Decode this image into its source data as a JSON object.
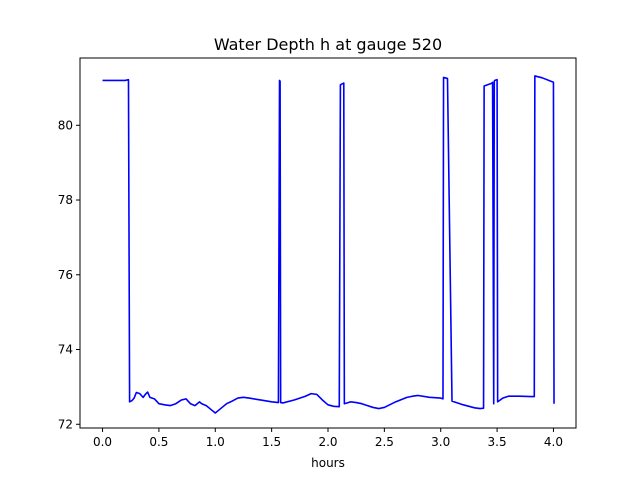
{
  "chart_data": {
    "type": "line",
    "title": "Water Depth h at gauge 520",
    "xlabel": "hours",
    "ylabel": "",
    "xlim": [
      -0.2,
      4.2
    ],
    "ylim": [
      71.9,
      81.8
    ],
    "xticks": [
      0.0,
      0.5,
      1.0,
      1.5,
      2.0,
      2.5,
      3.0,
      3.5,
      4.0
    ],
    "xtick_labels": [
      "0.0",
      "0.5",
      "1.0",
      "1.5",
      "2.0",
      "2.5",
      "3.0",
      "3.5",
      "4.0"
    ],
    "yticks": [
      72,
      74,
      76,
      78,
      80
    ],
    "ytick_labels": [
      "72",
      "74",
      "76",
      "78",
      "80"
    ],
    "grid": false,
    "colors": {
      "line": "#0000ff"
    },
    "series": [
      {
        "x": [
          0.0,
          0.1,
          0.2,
          0.23,
          0.24,
          0.26,
          0.28,
          0.3,
          0.33,
          0.36,
          0.38,
          0.4,
          0.42,
          0.44,
          0.46,
          0.5,
          0.55,
          0.6,
          0.65,
          0.7,
          0.74,
          0.78,
          0.82,
          0.86,
          0.88,
          0.92,
          0.96,
          1.0,
          1.02,
          1.06,
          1.1,
          1.15,
          1.2,
          1.25,
          1.3,
          1.4,
          1.5,
          1.56,
          1.57,
          1.575,
          1.58,
          1.6,
          1.7,
          1.8,
          1.85,
          1.9,
          1.95,
          2.0,
          2.05,
          2.1,
          2.11,
          2.12,
          2.14,
          2.145,
          2.2,
          2.25,
          2.3,
          2.35,
          2.4,
          2.45,
          2.5,
          2.6,
          2.7,
          2.75,
          2.8,
          2.9,
          3.0,
          3.02,
          3.025,
          3.05,
          3.06,
          3.1,
          3.2,
          3.3,
          3.35,
          3.38,
          3.385,
          3.45,
          3.46,
          3.47,
          3.475,
          3.48,
          3.5,
          3.505,
          3.55,
          3.6,
          3.7,
          3.8,
          3.83,
          3.835,
          3.9,
          4.0,
          4.005
        ],
        "y": [
          81.2,
          81.2,
          81.2,
          81.22,
          72.6,
          72.63,
          72.7,
          72.85,
          72.82,
          72.72,
          72.8,
          72.86,
          72.72,
          72.7,
          72.68,
          72.55,
          72.52,
          72.5,
          72.55,
          72.65,
          72.68,
          72.55,
          72.5,
          72.6,
          72.55,
          72.5,
          72.4,
          72.3,
          72.35,
          72.45,
          72.55,
          72.62,
          72.7,
          72.72,
          72.7,
          72.65,
          72.6,
          72.58,
          81.2,
          81.18,
          72.58,
          72.57,
          72.65,
          72.75,
          72.82,
          72.8,
          72.65,
          72.52,
          72.48,
          72.47,
          81.08,
          81.1,
          81.13,
          72.55,
          72.6,
          72.58,
          72.55,
          72.5,
          72.45,
          72.42,
          72.45,
          72.6,
          72.72,
          72.75,
          72.77,
          72.72,
          72.7,
          72.68,
          81.28,
          81.26,
          81.25,
          72.62,
          72.52,
          72.44,
          72.42,
          72.43,
          81.05,
          81.12,
          81.15,
          72.55,
          81.18,
          81.2,
          81.22,
          72.6,
          72.7,
          72.75,
          72.75,
          72.74,
          72.74,
          81.32,
          81.27,
          81.15,
          72.55
        ]
      }
    ]
  }
}
